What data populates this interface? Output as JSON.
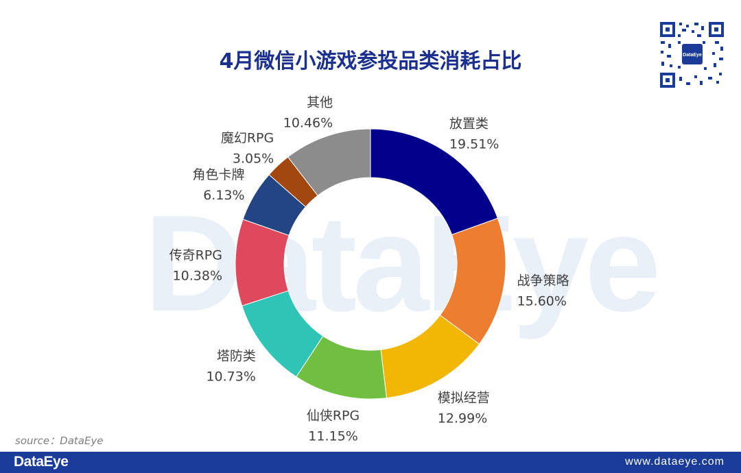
{
  "title": "4月微信小游戏参投品类消耗占比",
  "watermark": "DataEye",
  "source": "source：DataEye",
  "footer": {
    "brand": "DataEye",
    "url": "www.dataeye.com"
  },
  "qr": {
    "center_text": "DataEye"
  },
  "chart_data": {
    "type": "pie",
    "donut": true,
    "title": "4月微信小游戏参投品类消耗占比",
    "labels": [
      "放置类",
      "战争策略",
      "模拟经营",
      "仙侠RPG",
      "塔防类",
      "传奇RPG",
      "角色卡牌",
      "魔幻RPG",
      "其他"
    ],
    "values": [
      19.51,
      15.6,
      12.99,
      11.15,
      10.73,
      10.38,
      6.13,
      3.05,
      10.46
    ],
    "value_labels": [
      "19.51%",
      "15.60%",
      "12.99%",
      "11.15%",
      "10.73%",
      "10.38%",
      "6.13%",
      "3.05%",
      "10.46%"
    ],
    "colors": [
      "#00008b",
      "#ed7d31",
      "#f2b705",
      "#70bf40",
      "#2ec4b6",
      "#e0485e",
      "#234583",
      "#a2480e",
      "#8c8c8c"
    ],
    "legend": "none"
  }
}
